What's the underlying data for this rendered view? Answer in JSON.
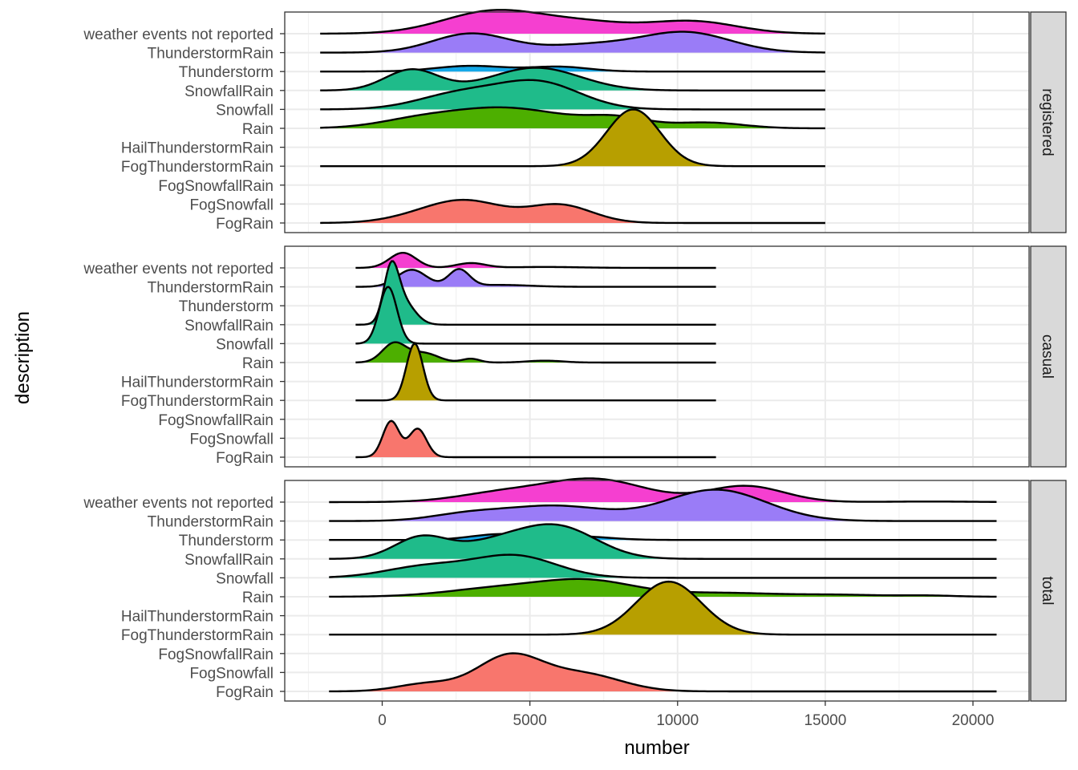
{
  "chart_data": {
    "type": "ridgeline",
    "xlabel": "number",
    "ylabel": "description",
    "xlim": [
      -3300,
      21900
    ],
    "x_ticks": [
      0,
      5000,
      10000,
      15000,
      20000
    ],
    "x_tick_labels": [
      "0",
      "5000",
      "10000",
      "15000",
      "20000"
    ],
    "categories": [
      "FogRain",
      "FogSnowfall",
      "FogSnowfallRain",
      "FogThunderstormRain",
      "HailThunderstormRain",
      "Rain",
      "Snowfall",
      "SnowfallRain",
      "Thunderstorm",
      "ThunderstormRain",
      "weather events not reported"
    ],
    "category_colors": {
      "FogRain": "#F8766D",
      "FogThunderstormRain": "#B79F00",
      "Rain": "#4DAF00",
      "Snowfall": "#1FBB8A",
      "SnowfallRain": "#1FBB8A",
      "Thunderstorm": "#14A8E8",
      "ThunderstormRain": "#9A7CF7",
      "weather events not reported": "#F53FD0"
    },
    "grid": true,
    "panels": [
      {
        "strip": "registered",
        "ridges": [
          {
            "category": "FogRain",
            "range": [
              -2100,
              15000
            ],
            "peaks": [
              [
                3000,
                1.0,
                1200
              ],
              [
                6000,
                0.95,
                1100
              ],
              [
                1500,
                0.4,
                1200
              ]
            ]
          },
          {
            "category": "FogThunderstormRain",
            "range": [
              -2100,
              15000
            ],
            "peaks": [
              [
                8500,
                3.0,
                900
              ]
            ]
          },
          {
            "category": "Rain",
            "range": [
              -2100,
              15000
            ],
            "peaks": [
              [
                4000,
                1.1,
                2200
              ],
              [
                8000,
                0.45,
                1000
              ],
              [
                11000,
                0.3,
                1200
              ],
              [
                1000,
                0.2,
                1200
              ]
            ]
          },
          {
            "category": "Snowfall",
            "range": [
              -2100,
              15000
            ],
            "peaks": [
              [
                5300,
                1.4,
                1400
              ],
              [
                2600,
                0.8,
                1400
              ]
            ]
          },
          {
            "category": "SnowfallRain",
            "range": [
              -2100,
              15000
            ],
            "peaks": [
              [
                1000,
                1.1,
                900
              ],
              [
                5200,
                1.2,
                1500
              ]
            ]
          },
          {
            "category": "Thunderstorm",
            "range": [
              -2100,
              15000
            ],
            "peaks": [
              [
                3000,
                0.3,
                1200
              ],
              [
                6000,
                0.25,
                1000
              ]
            ]
          },
          {
            "category": "ThunderstormRain",
            "range": [
              -2100,
              15000
            ],
            "peaks": [
              [
                3000,
                1.0,
                1300
              ],
              [
                10300,
                1.05,
                1500
              ],
              [
                7000,
                0.4,
                1600
              ]
            ]
          },
          {
            "category": "weather events not reported",
            "range": [
              -2100,
              15000
            ],
            "peaks": [
              [
                3800,
                1.2,
                1700
              ],
              [
                10500,
                0.65,
                1500
              ],
              [
                7000,
                0.5,
                1500
              ]
            ]
          }
        ]
      },
      {
        "strip": "casual",
        "ridges": [
          {
            "category": "FogRain",
            "range": [
              -900,
              11300
            ],
            "peaks": [
              [
                300,
                1.9,
                280
              ],
              [
                1200,
                1.5,
                300
              ]
            ]
          },
          {
            "category": "FogThunderstormRain",
            "range": [
              -900,
              11300
            ],
            "peaks": [
              [
                1100,
                3.0,
                280
              ]
            ]
          },
          {
            "category": "Rain",
            "range": [
              -900,
              11300
            ],
            "peaks": [
              [
                400,
                1.0,
                400
              ],
              [
                1400,
                0.5,
                500
              ],
              [
                3000,
                0.2,
                300
              ],
              [
                5500,
                0.1,
                600
              ]
            ]
          },
          {
            "category": "Snowfall",
            "range": [
              -900,
              11300
            ],
            "peaks": [
              [
                200,
                3.0,
                300
              ]
            ]
          },
          {
            "category": "SnowfallRain",
            "range": [
              -900,
              11300
            ],
            "peaks": [
              [
                300,
                2.6,
                250
              ],
              [
                700,
                1.2,
                400
              ]
            ]
          },
          {
            "category": "ThunderstormRain",
            "range": [
              -900,
              11300
            ],
            "peaks": [
              [
                1000,
                0.9,
                500
              ],
              [
                2600,
                0.9,
                350
              ],
              [
                4000,
                0.1,
                1000
              ]
            ]
          },
          {
            "category": "weather events not reported",
            "range": [
              -900,
              11300
            ],
            "peaks": [
              [
                700,
                0.8,
                450
              ],
              [
                3000,
                0.25,
                500
              ],
              [
                5500,
                0.05,
                1200
              ]
            ]
          }
        ]
      },
      {
        "strip": "total",
        "ridges": [
          {
            "category": "FogRain",
            "range": [
              -1800,
              20800
            ],
            "peaks": [
              [
                4300,
                1.85,
                1100
              ],
              [
                6800,
                0.9,
                1300
              ],
              [
                1500,
                0.4,
                1000
              ]
            ]
          },
          {
            "category": "FogThunderstormRain",
            "range": [
              -1800,
              20800
            ],
            "peaks": [
              [
                9700,
                2.8,
                1100
              ]
            ]
          },
          {
            "category": "Rain",
            "range": [
              -1800,
              20800
            ],
            "peaks": [
              [
                4000,
                0.45,
                1800
              ],
              [
                7000,
                0.8,
                1600
              ],
              [
                11500,
                0.2,
                1800
              ],
              [
                15500,
                0.1,
                1500
              ],
              [
                18500,
                0.06,
                900
              ]
            ]
          },
          {
            "category": "Snowfall",
            "range": [
              -1800,
              20800
            ],
            "peaks": [
              [
                4500,
                1.15,
                1400
              ],
              [
                1500,
                0.6,
                1400
              ]
            ]
          },
          {
            "category": "SnowfallRain",
            "range": [
              -1800,
              20800
            ],
            "peaks": [
              [
                1300,
                1.1,
                900
              ],
              [
                6000,
                1.6,
                1300
              ],
              [
                3800,
                0.8,
                1300
              ]
            ]
          },
          {
            "category": "Thunderstorm",
            "range": [
              -1800,
              20800
            ],
            "peaks": [
              [
                4000,
                0.3,
                1000
              ],
              [
                6500,
                0.2,
                1100
              ]
            ]
          },
          {
            "category": "ThunderstormRain",
            "range": [
              -1800,
              20800
            ],
            "peaks": [
              [
                11300,
                1.65,
                1700
              ],
              [
                5800,
                0.8,
                1800
              ],
              [
                2800,
                0.3,
                1200
              ]
            ]
          },
          {
            "category": "weather events not reported",
            "range": [
              -1800,
              20800
            ],
            "peaks": [
              [
                7200,
                1.2,
                1700
              ],
              [
                12300,
                0.85,
                1300
              ],
              [
                4000,
                0.45,
                1500
              ],
              [
                18500,
                0.03,
                1500
              ]
            ]
          }
        ]
      }
    ]
  }
}
